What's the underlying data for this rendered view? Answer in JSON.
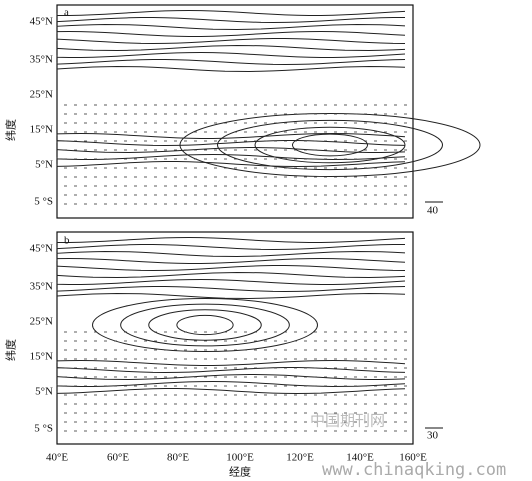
{
  "panels": [
    {
      "label": "a",
      "y_title": "纬度",
      "y_labels": [
        "45°N",
        "35°N",
        "25°N",
        "15°N",
        "5°N",
        "5 °S"
      ],
      "reference_vector": "40"
    },
    {
      "label": "b",
      "y_title": "纬度",
      "y_labels": [
        "45°N",
        "35°N",
        "25°N",
        "15°N",
        "5°N",
        "5 °S"
      ],
      "reference_vector": "30"
    }
  ],
  "x_labels": [
    "40°E",
    "60°E",
    "80°E",
    "100°E",
    "120°E",
    "140°E",
    "160°E"
  ],
  "x_title": "经度",
  "watermark": {
    "cn": "中国期刊网",
    "url": "www.chinaqking.com"
  }
}
